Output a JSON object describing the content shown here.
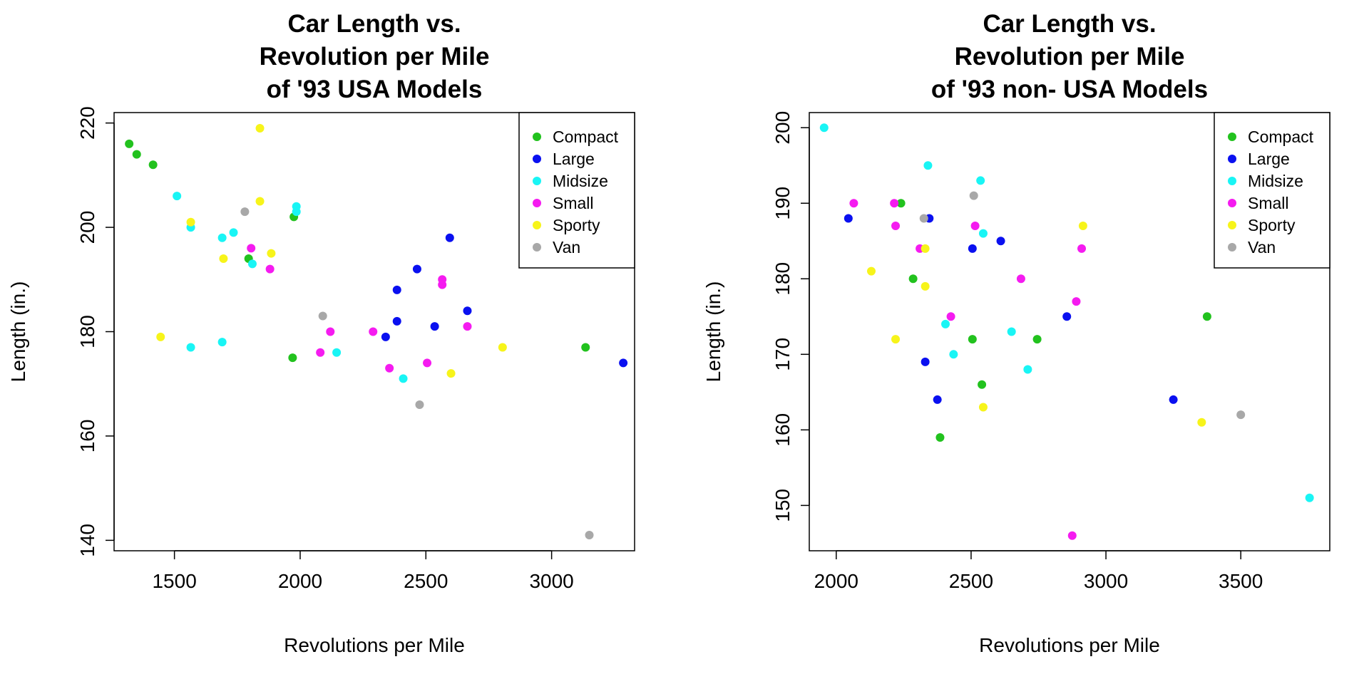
{
  "colors": {
    "Compact": "#22c21e",
    "Large": "#0a10f0",
    "Midsize": "#19f5f5",
    "Small": "#f51bf0",
    "Sporty": "#f7f41a",
    "Van": "#a8a8a8"
  },
  "chart_data": [
    {
      "type": "scatter",
      "title_lines": [
        "Car Length vs.",
        "Revolution per Mile",
        "of '93 USA Models"
      ],
      "xlabel": "Revolutions per Mile",
      "ylabel": "Length (in.)",
      "xlim": [
        1260,
        3330
      ],
      "ylim": [
        138,
        222
      ],
      "xticks": [
        1500,
        2000,
        2500,
        3000
      ],
      "yticks": [
        140,
        160,
        180,
        200,
        220
      ],
      "grid": false,
      "legend": {
        "position": "top-right",
        "entries": [
          "Compact",
          "Large",
          "Midsize",
          "Small",
          "Sporty",
          "Van"
        ]
      },
      "series": [
        {
          "name": "Compact",
          "points": [
            [
              1320,
              216
            ],
            [
              1350,
              214
            ],
            [
              1415,
              212
            ],
            [
              1795,
              194
            ],
            [
              1975,
              202
            ],
            [
              1970,
              175
            ],
            [
              3135,
              177
            ]
          ]
        },
        {
          "name": "Large",
          "points": [
            [
              2385,
              188
            ],
            [
              2385,
              182
            ],
            [
              2340,
              179
            ],
            [
              2465,
              192
            ],
            [
              2535,
              181
            ],
            [
              2595,
              198
            ],
            [
              2665,
              184
            ],
            [
              3285,
              174
            ]
          ]
        },
        {
          "name": "Midsize",
          "points": [
            [
              1510,
              206
            ],
            [
              1565,
              200
            ],
            [
              1690,
              198
            ],
            [
              1735,
              199
            ],
            [
              1810,
              193
            ],
            [
              1985,
              204
            ],
            [
              1985,
              203
            ],
            [
              1565,
              177
            ],
            [
              1690,
              178
            ],
            [
              2145,
              176
            ],
            [
              2410,
              171
            ]
          ]
        },
        {
          "name": "Small",
          "points": [
            [
              1805,
              196
            ],
            [
              1880,
              192
            ],
            [
              2080,
              176
            ],
            [
              2120,
              180
            ],
            [
              2290,
              180
            ],
            [
              2355,
              173
            ],
            [
              2505,
              174
            ],
            [
              2565,
              190
            ],
            [
              2565,
              189
            ],
            [
              2665,
              181
            ]
          ]
        },
        {
          "name": "Sporty",
          "points": [
            [
              1840,
              219
            ],
            [
              1840,
              205
            ],
            [
              1565,
              201
            ],
            [
              1695,
              194
            ],
            [
              1885,
              195
            ],
            [
              1445,
              179
            ],
            [
              2600,
              172
            ],
            [
              2805,
              177
            ]
          ]
        },
        {
          "name": "Van",
          "points": [
            [
              1780,
              203
            ],
            [
              2090,
              183
            ],
            [
              2475,
              166
            ],
            [
              3150,
              141
            ]
          ]
        }
      ]
    },
    {
      "type": "scatter",
      "title_lines": [
        "Car Length vs.",
        "Revolution per Mile",
        "of '93 non- USA Models"
      ],
      "xlabel": "Revolutions per Mile",
      "ylabel": "Length (in.)",
      "xlim": [
        1900,
        3830
      ],
      "ylim": [
        144,
        202
      ],
      "xticks": [
        2000,
        2500,
        3000,
        3500
      ],
      "yticks": [
        150,
        160,
        170,
        180,
        190,
        200
      ],
      "grid": false,
      "legend": {
        "position": "top-right",
        "entries": [
          "Compact",
          "Large",
          "Midsize",
          "Small",
          "Sporty",
          "Van"
        ]
      },
      "series": [
        {
          "name": "Compact",
          "points": [
            [
              2240,
              190
            ],
            [
              2285,
              180
            ],
            [
              2505,
              172
            ],
            [
              2540,
              166
            ],
            [
              2745,
              172
            ],
            [
              2385,
              159
            ],
            [
              3375,
              175
            ]
          ]
        },
        {
          "name": "Large",
          "points": [
            [
              2045,
              188
            ],
            [
              2345,
              188
            ],
            [
              2505,
              184
            ],
            [
              2610,
              185
            ],
            [
              2330,
              169
            ],
            [
              2375,
              164
            ],
            [
              2855,
              175
            ],
            [
              3250,
              164
            ]
          ]
        },
        {
          "name": "Midsize",
          "points": [
            [
              1955,
              200
            ],
            [
              2340,
              195
            ],
            [
              2535,
              193
            ],
            [
              2545,
              186
            ],
            [
              2405,
              174
            ],
            [
              2435,
              170
            ],
            [
              2650,
              173
            ],
            [
              2710,
              168
            ],
            [
              3755,
              151
            ]
          ]
        },
        {
          "name": "Small",
          "points": [
            [
              2065,
              190
            ],
            [
              2215,
              190
            ],
            [
              2220,
              187
            ],
            [
              2310,
              184
            ],
            [
              2515,
              187
            ],
            [
              2425,
              175
            ],
            [
              2685,
              180
            ],
            [
              2890,
              177
            ],
            [
              2910,
              184
            ],
            [
              2875,
              146
            ]
          ]
        },
        {
          "name": "Sporty",
          "points": [
            [
              2130,
              181
            ],
            [
              2220,
              172
            ],
            [
              2330,
              184
            ],
            [
              2330,
              179
            ],
            [
              2545,
              163
            ],
            [
              2915,
              187
            ],
            [
              3355,
              161
            ]
          ]
        },
        {
          "name": "Van",
          "points": [
            [
              2325,
              188
            ],
            [
              2510,
              191
            ],
            [
              3500,
              162
            ]
          ]
        }
      ]
    }
  ]
}
